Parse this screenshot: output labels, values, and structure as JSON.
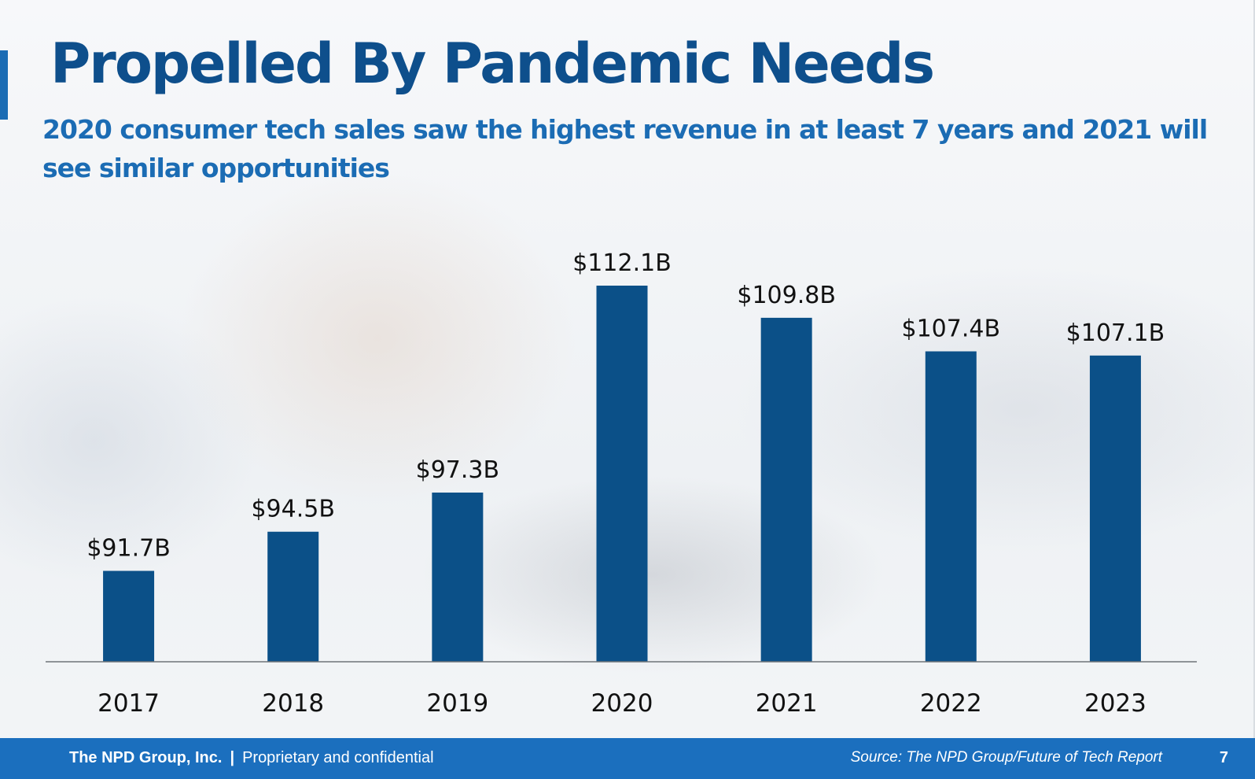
{
  "slide": {
    "title": "Propelled By Pandemic Needs",
    "subtitle": "2020 consumer tech sales saw the highest revenue in at least 7 years and 2021 will see similar opportunities"
  },
  "footer": {
    "company": "The NPD Group, Inc.",
    "separator": "|",
    "confidential": "Proprietary and confidential",
    "source": "Source: The NPD Group/Future of Tech Report",
    "page_number": "7"
  },
  "colors": {
    "bar": "#0b5088",
    "title": "#0e4f8c",
    "subtitle": "#1b6cb4",
    "footer": "#1b6fbe"
  },
  "chart_data": {
    "type": "bar",
    "categories": [
      "2017",
      "2018",
      "2019",
      "2020",
      "2021",
      "2022",
      "2023"
    ],
    "values": [
      91.7,
      94.5,
      97.3,
      112.1,
      109.8,
      107.4,
      107.1
    ],
    "data_labels": [
      "$91.7B",
      "$94.5B",
      "$97.3B",
      "$112.1B",
      "$109.8B",
      "$107.4B",
      "$107.1B"
    ],
    "ylim": [
      85.2,
      112.1
    ],
    "grid": false,
    "legend": "none"
  }
}
